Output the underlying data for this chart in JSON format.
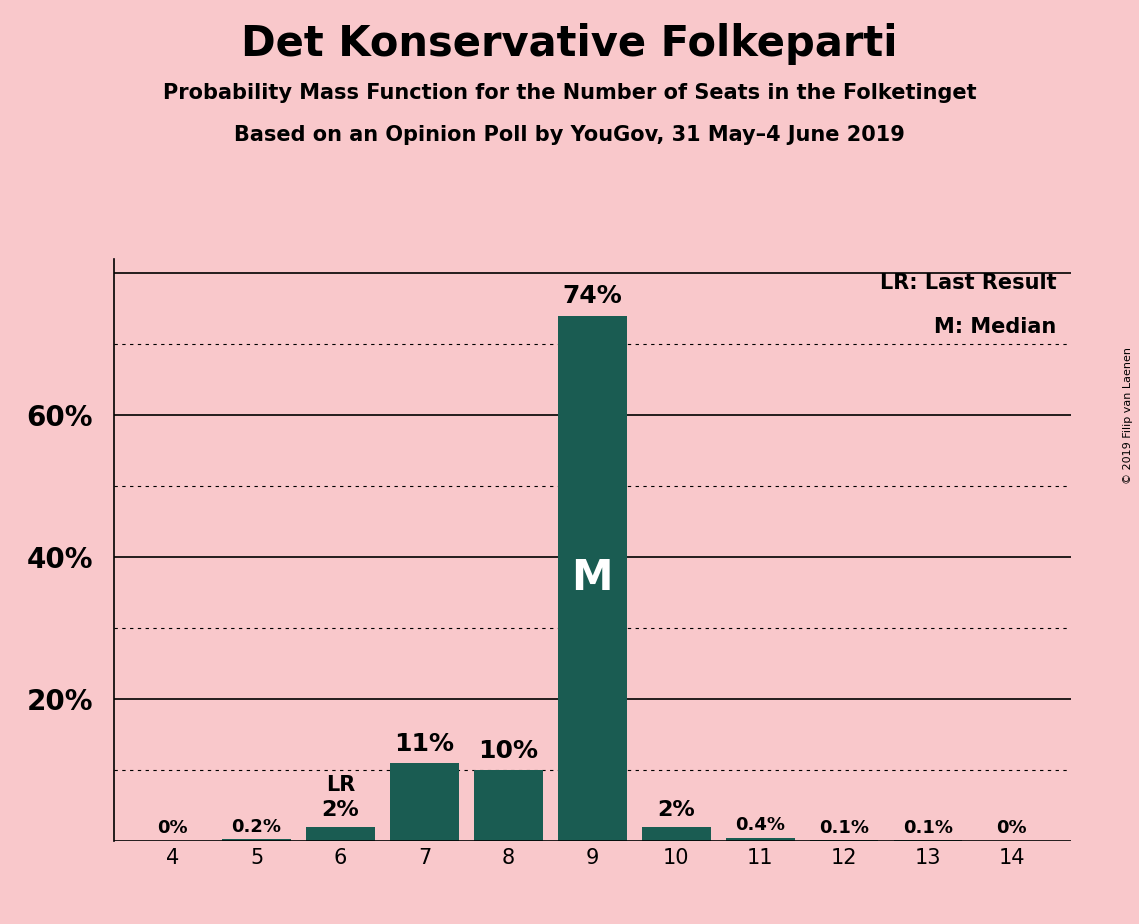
{
  "title": "Det Konservative Folkeparti",
  "subtitle1": "Probability Mass Function for the Number of Seats in the Folketinget",
  "subtitle2": "Based on an Opinion Poll by YouGov, 31 May–4 June 2019",
  "copyright": "© 2019 Filip van Laenen",
  "seats": [
    4,
    5,
    6,
    7,
    8,
    9,
    10,
    11,
    12,
    13,
    14
  ],
  "probabilities": [
    0.0,
    0.2,
    2.0,
    11.0,
    10.0,
    74.0,
    2.0,
    0.4,
    0.1,
    0.1,
    0.0
  ],
  "labels": [
    "0%",
    "0.2%",
    "2%",
    "11%",
    "10%",
    "74%",
    "2%",
    "0.4%",
    "0.1%",
    "0.1%",
    "0%"
  ],
  "bar_color": "#1a5c52",
  "background_color": "#f9c8cb",
  "median_seat": 9,
  "lr_seat": 6,
  "median_label": "M",
  "lr_label": "LR",
  "legend_lr": "LR: Last Result",
  "legend_m": "M: Median",
  "ylim": [
    0,
    82
  ],
  "grid_color": "#555555",
  "solid_gridlines": [
    20,
    40,
    60,
    80
  ],
  "dotted_gridlines": [
    10,
    30,
    50,
    70
  ],
  "ytick_positions": [
    20,
    40,
    60
  ],
  "ytick_labels": [
    "20%",
    "40%",
    "60%"
  ]
}
